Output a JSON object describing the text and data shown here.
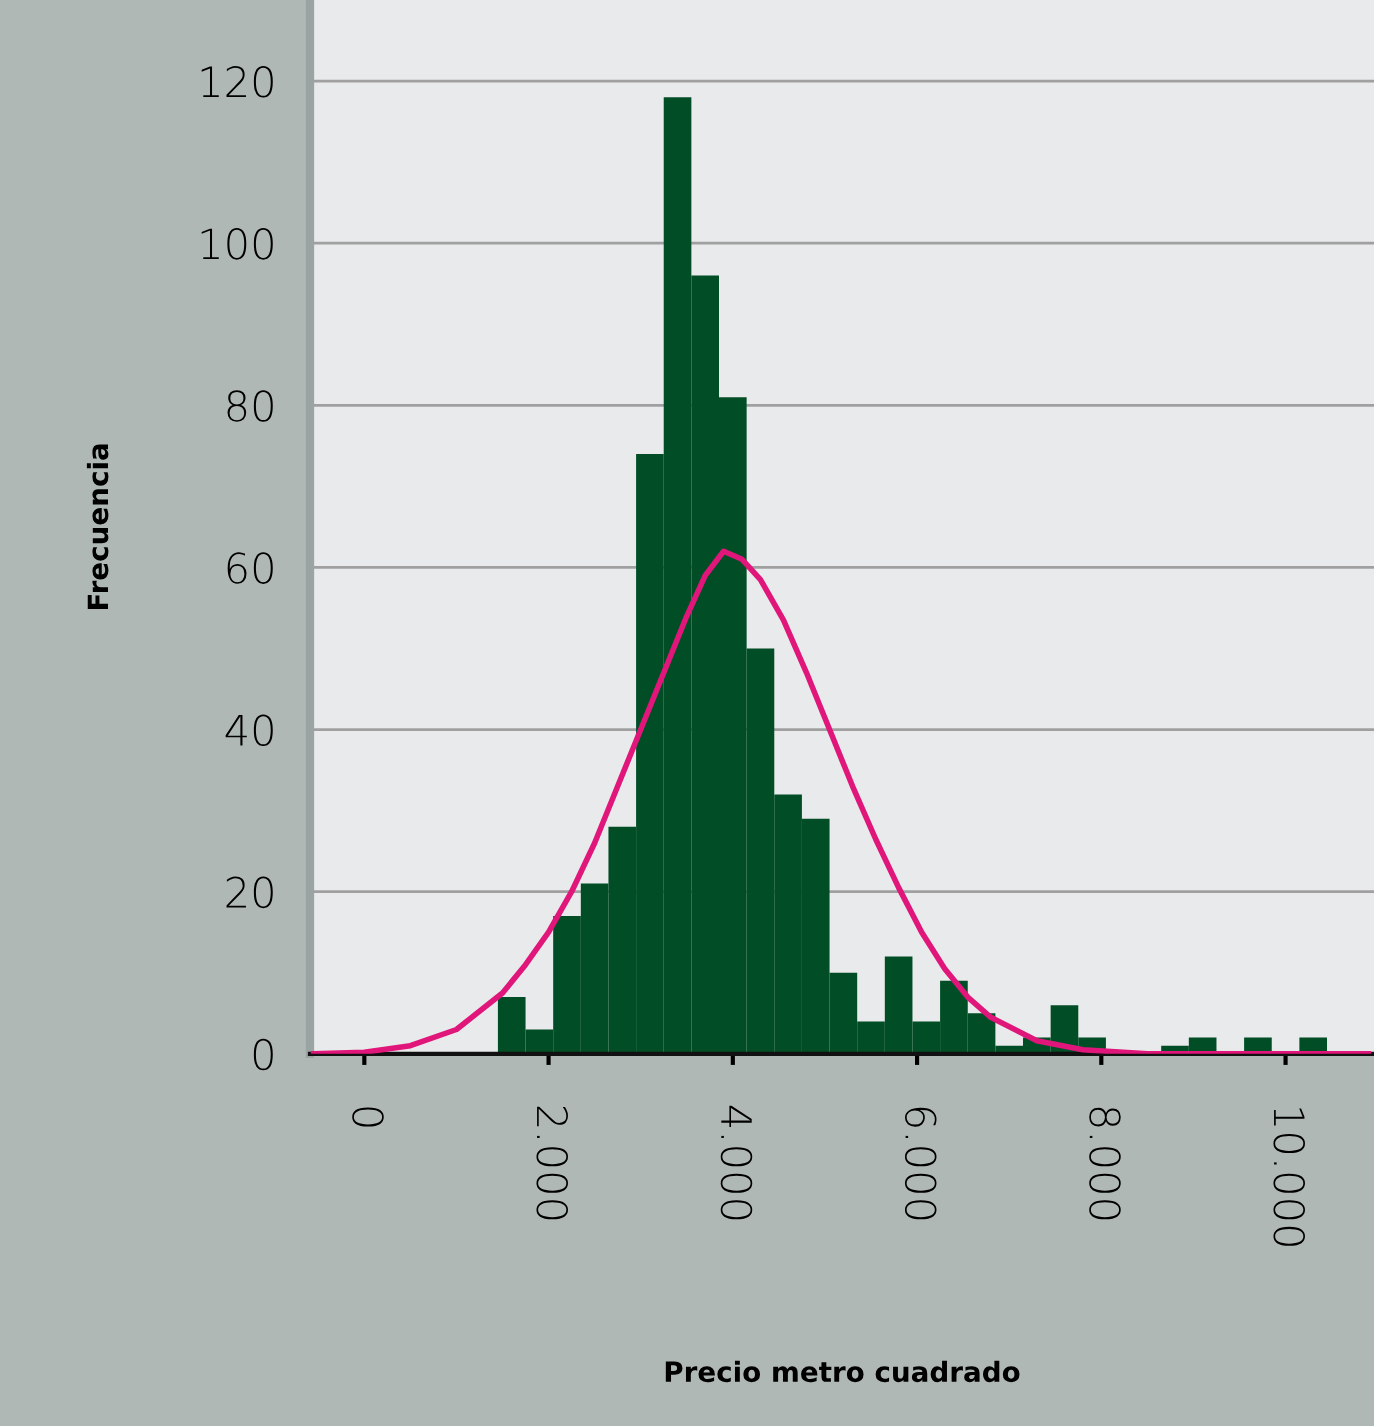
{
  "chart_data": {
    "type": "histogram",
    "xlabel": "Precio metro cuadrado",
    "ylabel": "Frecuencia",
    "bins": [
      1450,
      1750,
      2050,
      2350,
      2650,
      2950,
      3250,
      3550,
      3850,
      4150,
      4450,
      4750,
      5050,
      5350,
      5650,
      5950,
      6250,
      6550,
      6850,
      7150,
      7450,
      7750,
      8050,
      8350,
      8650,
      8950,
      9250,
      9550,
      9850,
      10150,
      10450
    ],
    "values": [
      7,
      3,
      17,
      21,
      28,
      74,
      118,
      96,
      81,
      50,
      32,
      29,
      10,
      4,
      12,
      4,
      9,
      5,
      1,
      2,
      6,
      2,
      0,
      0,
      1,
      2,
      0,
      2,
      0,
      2
    ],
    "color": "#004d26",
    "series": [
      {
        "type": "line",
        "color": "#e0167a",
        "x": [
          -550,
          0,
          500,
          1000,
          1500,
          1750,
          2000,
          2250,
          2500,
          2750,
          3000,
          3250,
          3500,
          3700,
          3900,
          4100,
          4300,
          4550,
          4800,
          5050,
          5300,
          5550,
          5800,
          6050,
          6300,
          6550,
          6800,
          7300,
          7800,
          8500,
          10900
        ],
        "values": [
          0,
          0.2,
          1,
          3,
          7.5,
          11,
          15,
          20,
          26,
          33,
          40,
          47,
          54,
          59,
          62,
          61,
          58.5,
          53.5,
          47,
          40,
          33,
          26.5,
          20.5,
          15,
          10.5,
          7,
          4.5,
          1.6,
          0.5,
          0,
          0
        ]
      }
    ],
    "xlim": [
      -590,
      10960
    ],
    "ylim": [
      0,
      130
    ],
    "xticks": [
      0,
      {
        "value": 2000,
        "label": "2.000"
      },
      {
        "value": 4000,
        "label": "4.000"
      },
      {
        "value": 6000,
        "label": "6.000"
      },
      {
        "value": 8000,
        "label": "8.000"
      },
      {
        "value": 10000,
        "label": "10.000"
      }
    ],
    "yticks": [
      0,
      20,
      40,
      60,
      80,
      100,
      120
    ],
    "grid": "y",
    "legend": false
  }
}
